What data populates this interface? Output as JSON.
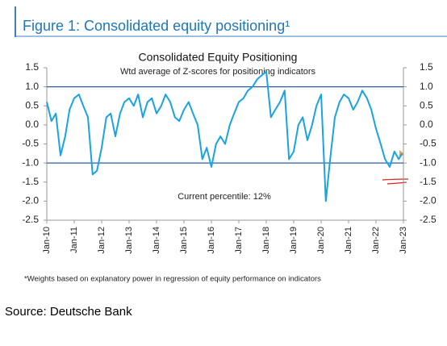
{
  "header": "Figure 1: Consolidated equity positioning¹",
  "chart_data": {
    "type": "line",
    "title": "Consolidated Equity Positioning",
    "subtitle": "Wtd average of Z-scores for positioning indicators",
    "annotation": "Current percentile: 12%",
    "x": [
      2010,
      2010.17,
      2010.33,
      2010.5,
      2010.67,
      2010.83,
      2011,
      2011.17,
      2011.33,
      2011.5,
      2011.67,
      2011.83,
      2012,
      2012.17,
      2012.33,
      2012.5,
      2012.67,
      2012.83,
      2013,
      2013.17,
      2013.33,
      2013.5,
      2013.67,
      2013.83,
      2014,
      2014.17,
      2014.33,
      2014.5,
      2014.67,
      2014.83,
      2015,
      2015.17,
      2015.33,
      2015.5,
      2015.67,
      2015.83,
      2016,
      2016.17,
      2016.33,
      2016.5,
      2016.67,
      2016.83,
      2017,
      2017.17,
      2017.33,
      2017.5,
      2017.67,
      2017.83,
      2018,
      2018.17,
      2018.33,
      2018.5,
      2018.67,
      2018.83,
      2019,
      2019.17,
      2019.33,
      2019.5,
      2019.67,
      2019.83,
      2020,
      2020.17,
      2020.33,
      2020.5,
      2020.67,
      2020.83,
      2021,
      2021.17,
      2021.33,
      2021.5,
      2021.67,
      2021.83,
      2022,
      2022.17,
      2022.33,
      2022.5,
      2022.67,
      2022.83,
      2022.95
    ],
    "series": [
      {
        "name": "Consolidated equity positioning",
        "color": "#1aa3e0",
        "values": [
          0.6,
          0.1,
          0.3,
          -0.8,
          -0.3,
          0.4,
          0.7,
          0.8,
          0.5,
          0.2,
          -1.3,
          -1.2,
          -0.6,
          0.2,
          0.3,
          -0.3,
          0.3,
          0.6,
          0.7,
          0.5,
          0.8,
          0.2,
          0.6,
          0.7,
          0.3,
          0.5,
          0.8,
          0.6,
          0.2,
          0.1,
          0.4,
          0.6,
          0.3,
          0.0,
          -0.9,
          -0.6,
          -1.1,
          -0.5,
          -0.3,
          -0.5,
          0.0,
          0.3,
          0.6,
          0.7,
          0.9,
          1.0,
          1.2,
          1.3,
          1.4,
          0.2,
          0.4,
          0.6,
          0.9,
          -0.9,
          -0.7,
          0.0,
          0.2,
          -0.4,
          0.0,
          0.5,
          0.8,
          -2.0,
          -0.9,
          0.2,
          0.6,
          0.8,
          0.7,
          0.4,
          0.6,
          0.9,
          0.7,
          0.4,
          -0.1,
          -0.5,
          -0.9,
          -1.1,
          -0.7,
          -0.9,
          -0.75
        ]
      }
    ],
    "xlim": [
      2010,
      2023
    ],
    "xticks": [
      {
        "value": 2010,
        "label": "Jan-10"
      },
      {
        "value": 2011,
        "label": "Jan-11"
      },
      {
        "value": 2012,
        "label": "Jan-12"
      },
      {
        "value": 2013,
        "label": "Jan-13"
      },
      {
        "value": 2014,
        "label": "Jan-14"
      },
      {
        "value": 2015,
        "label": "Jan-15"
      },
      {
        "value": 2016,
        "label": "Jan-16"
      },
      {
        "value": 2017,
        "label": "Jan-17"
      },
      {
        "value": 2018,
        "label": "Jan-18"
      },
      {
        "value": 2019,
        "label": "Jan-19"
      },
      {
        "value": 2020,
        "label": "Jan-20"
      },
      {
        "value": 2021,
        "label": "Jan-21"
      },
      {
        "value": 2022,
        "label": "Jan-22"
      },
      {
        "value": 2023,
        "label": "Jan-23"
      }
    ],
    "ylim": [
      -2.5,
      1.5
    ],
    "yticks": [
      1.5,
      {
        "value": 1,
        "label": "1.0"
      },
      0.5,
      {
        "value": 0,
        "label": "0.0"
      },
      -0.5,
      {
        "value": -1,
        "label": "-1.0"
      },
      -1.5,
      {
        "value": -2,
        "label": "-2.0"
      },
      -2.5
    ],
    "y2lim": [
      -2.5,
      1.5
    ],
    "y2ticks": [
      1.5,
      {
        "value": 1,
        "label": "1.0"
      },
      0.5,
      {
        "value": 0,
        "label": "0.0"
      },
      -0.5,
      {
        "value": -1,
        "label": "-1.0"
      },
      -1.5,
      {
        "value": -2,
        "label": "-2.0"
      },
      -2.5
    ],
    "hlines": [
      1,
      -1
    ],
    "hline_color": "#2e5eaa",
    "footnote": "*Weights based on explanatory power in regression of equity performance on indicators"
  },
  "source": "Source: Deutsche Bank"
}
